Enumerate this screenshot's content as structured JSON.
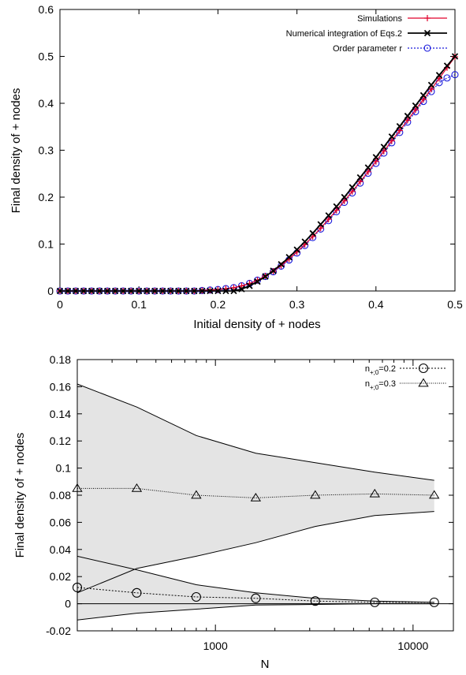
{
  "chart_data": [
    {
      "type": "line",
      "xlabel": "Initial density of + nodes",
      "ylabel": "Final density of + nodes",
      "xlim": [
        0,
        0.5
      ],
      "ylim": [
        0,
        0.6
      ],
      "xticks": [
        "0",
        "0.1",
        "0.2",
        "0.3",
        "0.4",
        "0.5"
      ],
      "yticks": [
        "0",
        "0.1",
        "0.2",
        "0.3",
        "0.4",
        "0.5",
        "0.6"
      ],
      "legend_position": "top-right",
      "x": [
        0.0,
        0.01,
        0.02,
        0.03,
        0.04,
        0.05,
        0.06,
        0.07,
        0.08,
        0.09,
        0.1,
        0.11,
        0.12,
        0.13,
        0.14,
        0.15,
        0.16,
        0.17,
        0.18,
        0.19,
        0.2,
        0.21,
        0.22,
        0.23,
        0.24,
        0.25,
        0.26,
        0.27,
        0.28,
        0.29,
        0.3,
        0.31,
        0.32,
        0.33,
        0.34,
        0.35,
        0.36,
        0.37,
        0.38,
        0.39,
        0.4,
        0.41,
        0.42,
        0.43,
        0.44,
        0.45,
        0.46,
        0.47,
        0.48,
        0.49,
        0.5
      ],
      "series": [
        {
          "name": "Simulations",
          "color": "#e0002a",
          "marker": "plus",
          "values": [
            0,
            0,
            0,
            0,
            0,
            0,
            0,
            0,
            0,
            0,
            0,
            0,
            0,
            0,
            0,
            0,
            0,
            0,
            0.001,
            0.002,
            0.003,
            0.005,
            0.007,
            0.011,
            0.016,
            0.023,
            0.032,
            0.042,
            0.054,
            0.068,
            0.083,
            0.099,
            0.116,
            0.134,
            0.153,
            0.172,
            0.192,
            0.212,
            0.233,
            0.254,
            0.276,
            0.298,
            0.32,
            0.342,
            0.364,
            0.386,
            0.408,
            0.43,
            0.453,
            0.476,
            0.499
          ]
        },
        {
          "name": "Numerical integration of Eqs.2",
          "color": "#000000",
          "marker": "cross",
          "values": [
            0,
            0,
            0,
            0,
            0,
            0,
            0,
            0,
            0,
            0,
            0,
            0,
            0,
            0,
            0,
            0,
            0,
            0,
            0,
            0,
            0,
            0,
            0,
            0.004,
            0.011,
            0.02,
            0.031,
            0.043,
            0.057,
            0.072,
            0.088,
            0.105,
            0.123,
            0.142,
            0.161,
            0.18,
            0.2,
            0.221,
            0.242,
            0.263,
            0.285,
            0.307,
            0.329,
            0.351,
            0.373,
            0.395,
            0.417,
            0.439,
            0.46,
            0.48,
            0.5
          ]
        },
        {
          "name": "Order parameter r",
          "color": "#1a1adc",
          "marker": "circle",
          "values": [
            0,
            0,
            0,
            0,
            0,
            0,
            0,
            0,
            0,
            0,
            0,
            0,
            0,
            0,
            0,
            0,
            0,
            0,
            0.001,
            0.002,
            0.003,
            0.005,
            0.007,
            0.011,
            0.016,
            0.023,
            0.031,
            0.041,
            0.053,
            0.066,
            0.081,
            0.097,
            0.114,
            0.132,
            0.15,
            0.169,
            0.189,
            0.209,
            0.23,
            0.251,
            0.272,
            0.294,
            0.316,
            0.338,
            0.36,
            0.382,
            0.404,
            0.425,
            0.444,
            0.454,
            0.461
          ]
        }
      ]
    },
    {
      "type": "line",
      "xlabel": "N",
      "ylabel": "Final density of + nodes",
      "xscale": "log",
      "xlim": [
        200,
        16000
      ],
      "ylim": [
        -0.02,
        0.18
      ],
      "xticks": [
        "1000",
        "10000"
      ],
      "yticks": [
        "-0.02",
        "0",
        "0.02",
        "0.04",
        "0.06",
        "0.08",
        "0.1",
        "0.12",
        "0.14",
        "0.16",
        "0.18"
      ],
      "legend_position": "top-right",
      "x": [
        200,
        400,
        800,
        1600,
        3200,
        6400,
        12800
      ],
      "series": [
        {
          "name": "n+;0=0.2",
          "legend_main": "n",
          "legend_sub": "+;0",
          "legend_tail": "=0.2",
          "marker": "circle",
          "line_style": "dotted",
          "values": [
            0.012,
            0.008,
            0.005,
            0.004,
            0.002,
            0.001,
            0.001
          ],
          "upper": [
            0.035,
            0.025,
            0.014,
            0.008,
            0.004,
            0.002,
            0.001
          ],
          "lower": [
            -0.012,
            -0.007,
            -0.004,
            -0.001,
            -0.0005,
            0,
            0
          ]
        },
        {
          "name": "n+;0=0.3",
          "legend_main": "n",
          "legend_sub": "+;0",
          "legend_tail": "=0.3",
          "marker": "triangle",
          "line_style": "dotted",
          "values": [
            0.085,
            0.085,
            0.08,
            0.078,
            0.08,
            0.081,
            0.08
          ],
          "upper": [
            0.162,
            0.145,
            0.124,
            0.111,
            0.104,
            0.097,
            0.091
          ],
          "lower": [
            0.008,
            0.026,
            0.035,
            0.045,
            0.057,
            0.065,
            0.068
          ]
        }
      ]
    }
  ]
}
